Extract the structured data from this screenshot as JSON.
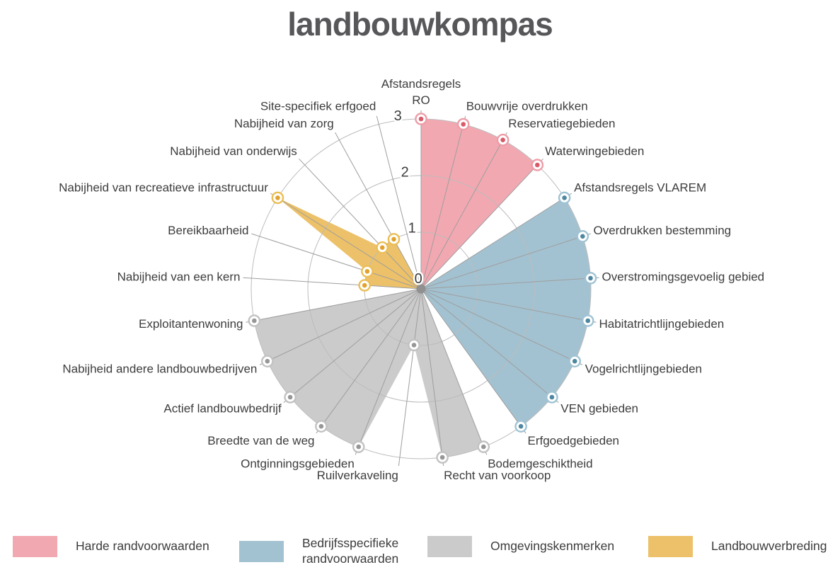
{
  "title": "landbouwkompas",
  "chart_data": {
    "type": "radar",
    "title": "landbouwkompas",
    "direction": "clockwise",
    "start_angle_deg": 90,
    "angle_step_deg": 14.4,
    "r_range": [
      0,
      3
    ],
    "r_ticks": [
      "0",
      "1",
      "2",
      "3"
    ],
    "grid": true,
    "axes": [
      {
        "label": "Afstandsregels\nRO",
        "value": 3,
        "group": "harde"
      },
      {
        "label": "Bouwvrije overdrukken",
        "value": 3,
        "group": "harde"
      },
      {
        "label": "Reservatiegebieden",
        "value": 3,
        "group": "harde"
      },
      {
        "label": "Waterwingebieden",
        "value": 3,
        "group": "harde"
      },
      {
        "label": "Afstandsregels VLAREM",
        "value": 3,
        "group": "bedrijfsspecifieke"
      },
      {
        "label": "Overdrukken bestemming",
        "value": 3,
        "group": "bedrijfsspecifieke"
      },
      {
        "label": "Overstromingsgevoelig gebied",
        "value": 3,
        "group": "bedrijfsspecifieke"
      },
      {
        "label": "Habitatrichtlijngebieden",
        "value": 3,
        "group": "bedrijfsspecifieke"
      },
      {
        "label": "Vogelrichtlijngebieden",
        "value": 3,
        "group": "bedrijfsspecifieke"
      },
      {
        "label": "VEN gebieden",
        "value": 3,
        "group": "bedrijfsspecifieke"
      },
      {
        "label": "Erfgoedgebieden",
        "value": 3,
        "group": "bedrijfsspecifieke"
      },
      {
        "label": "Bodemgeschiktheid",
        "value": 3,
        "group": "omgevingskenmerken"
      },
      {
        "label": "Recht van voorkoop",
        "value": 3,
        "group": "omgevingskenmerken"
      },
      {
        "label": "Ruilverkaveling",
        "value": 1,
        "group": "omgevingskenmerken"
      },
      {
        "label": "Ontginningsgebieden",
        "value": 3,
        "group": "omgevingskenmerken"
      },
      {
        "label": "Breedte van de weg",
        "value": 3,
        "group": "omgevingskenmerken"
      },
      {
        "label": "Actief landbouwbedrijf",
        "value": 3,
        "group": "omgevingskenmerken"
      },
      {
        "label": "Nabijheid andere landbouwbedrijven",
        "value": 3,
        "group": "omgevingskenmerken"
      },
      {
        "label": "Exploitantenwoning",
        "value": 3,
        "group": "omgevingskenmerken"
      },
      {
        "label": "Nabijheid van een kern",
        "value": 1,
        "group": "landbouwverbreding"
      },
      {
        "label": "Bereikbaarheid",
        "value": 1,
        "group": "landbouwverbreding"
      },
      {
        "label": "Nabijheid van recreatieve infrastructuur",
        "value": 3,
        "group": "landbouwverbreding"
      },
      {
        "label": "Nabijheid van onderwijs",
        "value": 1,
        "group": "landbouwverbreding"
      },
      {
        "label": "Nabijheid van zorg",
        "value": 1,
        "group": "landbouwverbreding"
      },
      {
        "label": "Site-specifiek erfgoed",
        "value": 0,
        "group": "landbouwverbreding"
      }
    ],
    "groups": {
      "harde": {
        "label": "Harde randvoorwaarden",
        "fill": "#F2A8B1",
        "ring": "#EE9CA7",
        "dot": "#D95A68"
      },
      "bedrijfsspecifieke": {
        "label": "Bedrijfsspecifieke\nrandvoorwaarden",
        "fill": "#A3C2D1",
        "ring": "#9FC3D4",
        "dot": "#4F87A1"
      },
      "omgevingskenmerken": {
        "label": "Omgevingskenmerken",
        "fill": "#CBCBCB",
        "ring": "#C2C2C2",
        "dot": "#979797"
      },
      "landbouwverbreding": {
        "label": "Landbouwverbreding",
        "fill": "#ECC169",
        "ring": "#EBBE55",
        "dot": "#E2A32E"
      }
    },
    "legend": [
      {
        "group": "harde",
        "label": "Harde randvoorwaarden"
      },
      {
        "group": "bedrijfsspecifieke",
        "label": "Bedrijfsspecifieke\nrandvoorwaarden"
      },
      {
        "group": "omgevingskenmerken",
        "label": "Omgevingskenmerken"
      },
      {
        "group": "landbouwverbreding",
        "label": "Landbouwverbreding"
      }
    ]
  }
}
